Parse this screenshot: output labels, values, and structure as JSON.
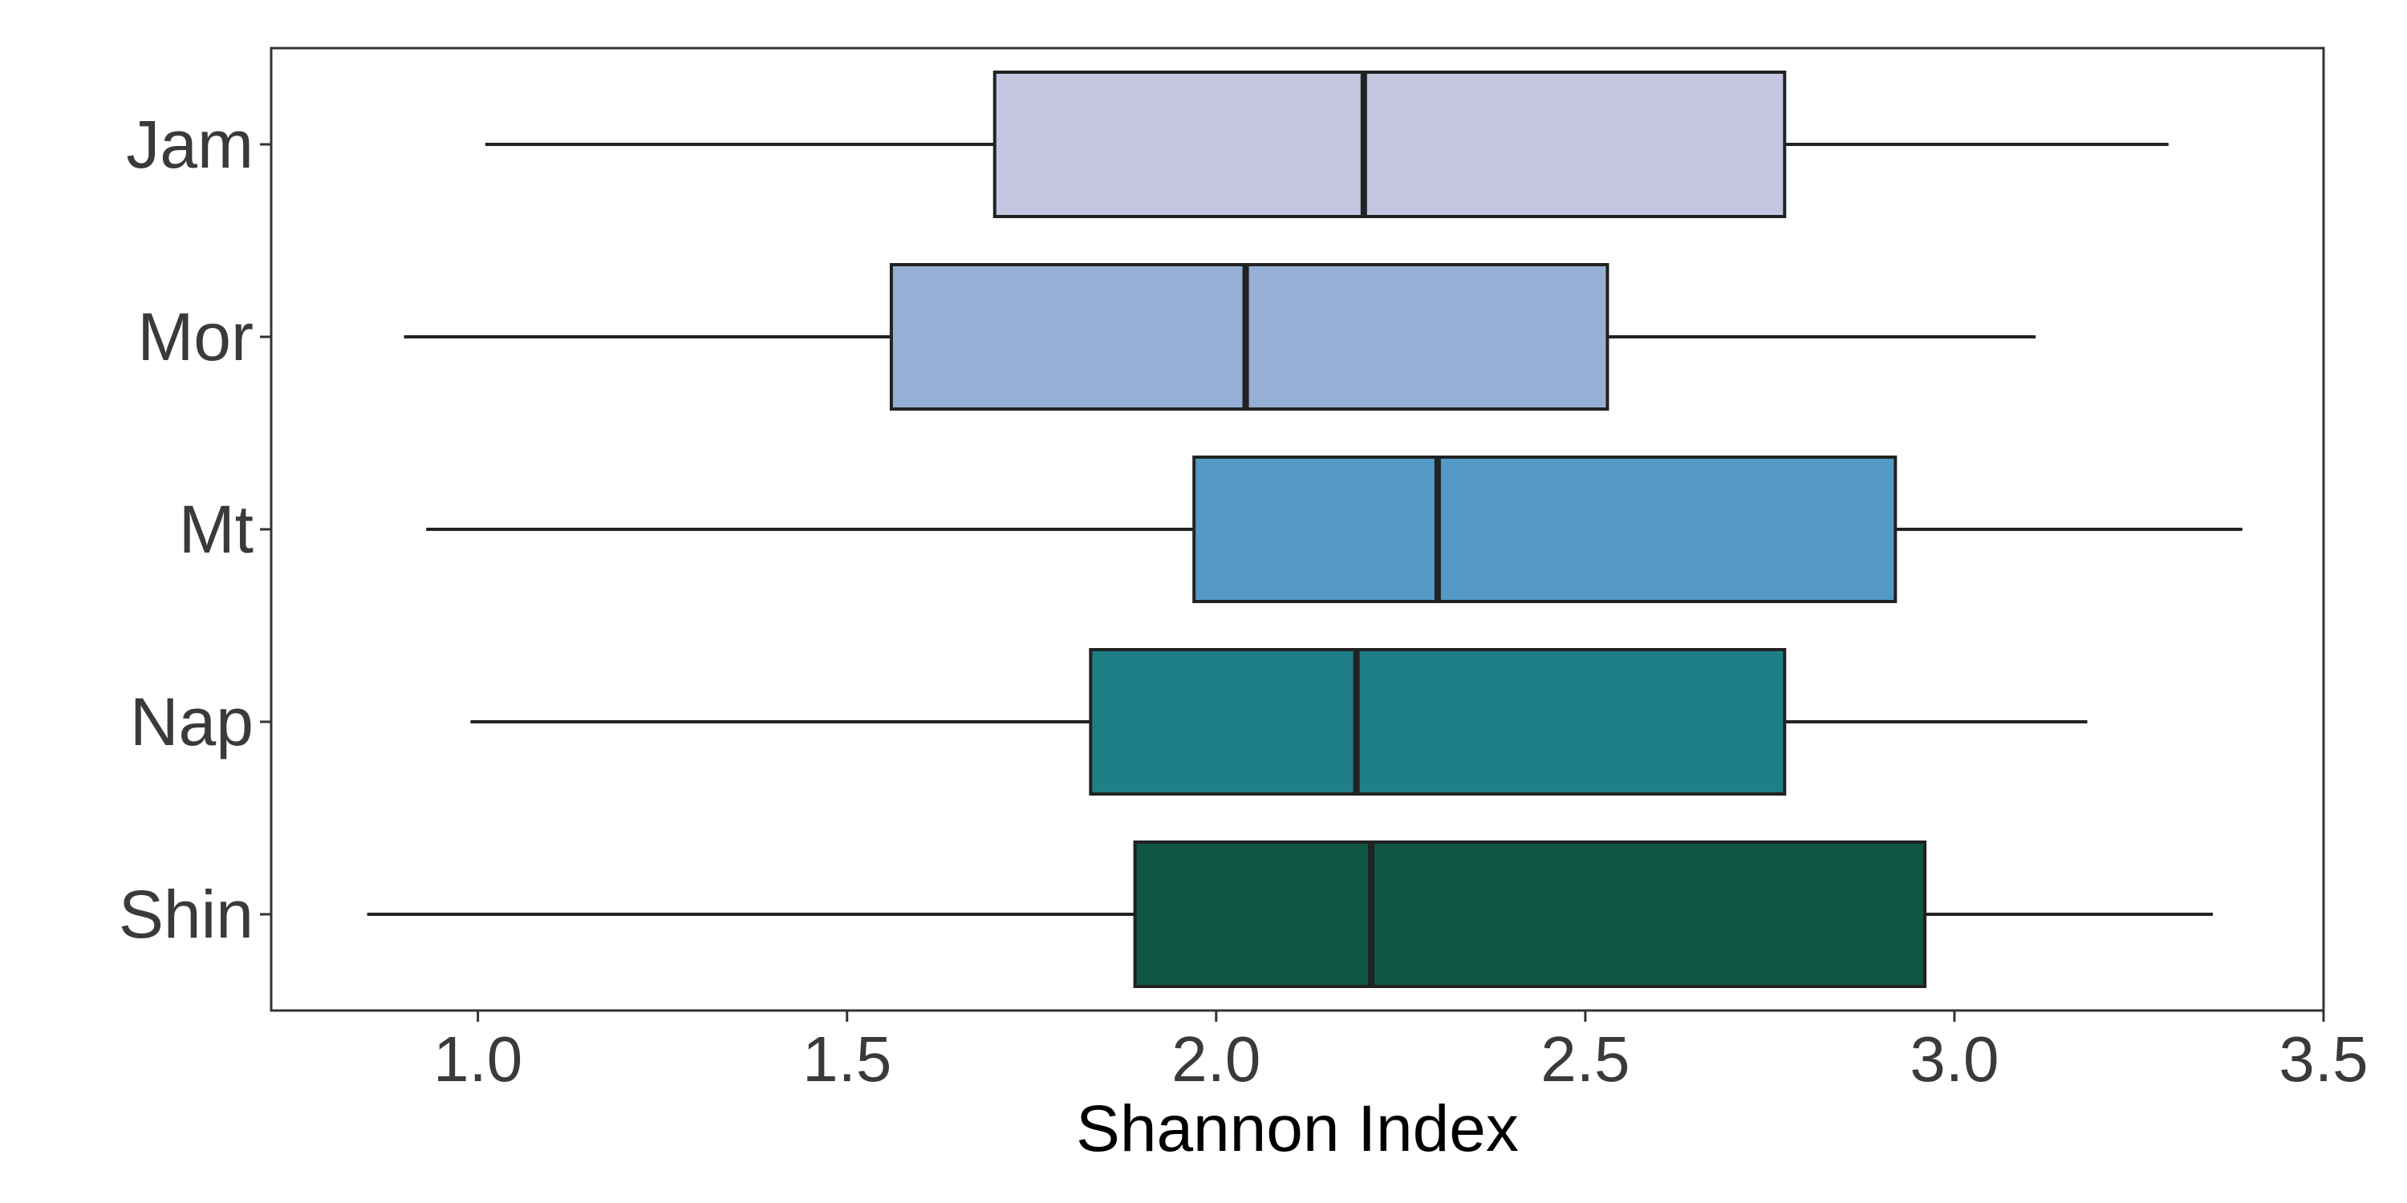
{
  "chart_data": {
    "type": "boxplot",
    "orientation": "horizontal",
    "title": "",
    "xlabel": "Shannon Index",
    "ylabel": "",
    "xlim": [
      0.72,
      3.5
    ],
    "x_ticks": [
      1.0,
      1.5,
      2.0,
      2.5,
      3.0,
      3.5
    ],
    "x_tick_labels": [
      "1.0",
      "1.5",
      "2.0",
      "2.5",
      "3.0",
      "3.5"
    ],
    "grid": false,
    "legend": "none",
    "categories": [
      "Jam",
      "Mor",
      "Mt",
      "Nap",
      "Shin"
    ],
    "series": [
      {
        "category": "Jam",
        "whisker_low": 1.01,
        "q1": 1.7,
        "median": 2.2,
        "q3": 2.77,
        "whisker_high": 3.29,
        "color": "#c4c6e2"
      },
      {
        "category": "Mor",
        "whisker_low": 0.9,
        "q1": 1.56,
        "median": 2.04,
        "q3": 2.53,
        "whisker_high": 3.11,
        "color": "#96afd4"
      },
      {
        "category": "Mt",
        "whisker_low": 0.93,
        "q1": 1.97,
        "median": 2.3,
        "q3": 2.92,
        "whisker_high": 3.39,
        "color": "#5499c5"
      },
      {
        "category": "Nap",
        "whisker_low": 0.99,
        "q1": 1.83,
        "median": 2.19,
        "q3": 2.77,
        "whisker_high": 3.18,
        "color": "#1f7f87"
      },
      {
        "category": "Shin",
        "whisker_low": 0.85,
        "q1": 1.89,
        "median": 2.21,
        "q3": 2.96,
        "whisker_high": 3.35,
        "color": "#0d5744"
      }
    ]
  }
}
